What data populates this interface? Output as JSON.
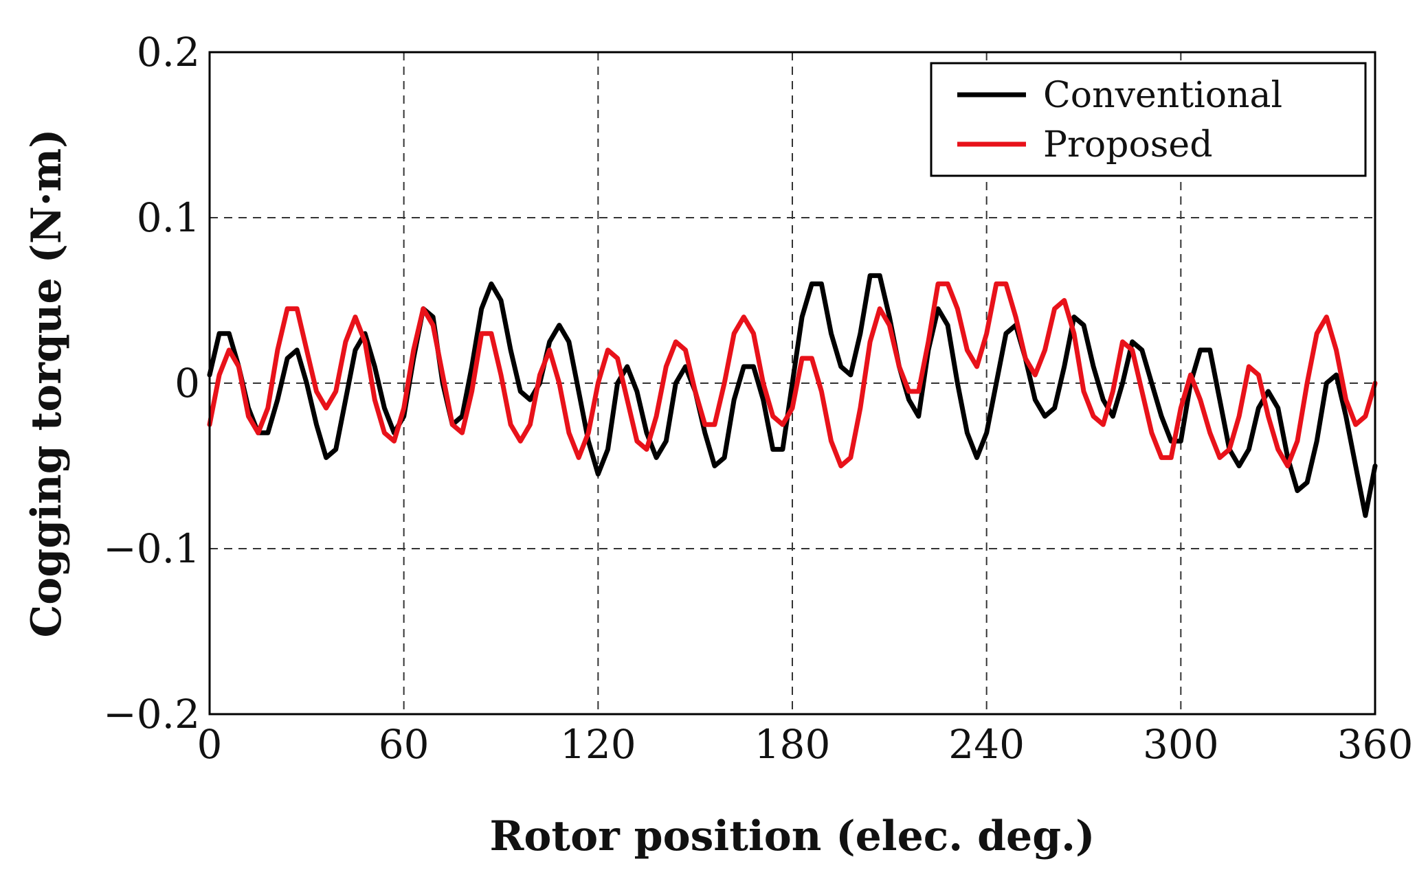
{
  "chart_data": {
    "type": "line",
    "title": "",
    "xlabel": "Rotor position (elec. deg.)",
    "ylabel": "Cogging torque (N·m)",
    "xlim": [
      0,
      360
    ],
    "ylim": [
      -0.2,
      0.2
    ],
    "grid": true,
    "legend_position": "top-right",
    "x_ticks": [
      0,
      60,
      120,
      180,
      240,
      300,
      360
    ],
    "x_tick_labels": [
      "0",
      "60",
      "120",
      "180",
      "240",
      "300",
      "360"
    ],
    "y_ticks": [
      0.2,
      0.1,
      0,
      -0.1,
      -0.2
    ],
    "y_tick_labels": [
      "0.2",
      "0.1",
      "0",
      "−0.1",
      "−0.2"
    ],
    "x": [
      0,
      3,
      6,
      9,
      12,
      15,
      18,
      21,
      24,
      27,
      30,
      33,
      36,
      39,
      42,
      45,
      48,
      51,
      54,
      57,
      60,
      63,
      66,
      69,
      72,
      75,
      78,
      81,
      84,
      87,
      90,
      93,
      96,
      99,
      102,
      105,
      108,
      111,
      114,
      117,
      120,
      123,
      126,
      129,
      132,
      135,
      138,
      141,
      144,
      147,
      150,
      153,
      156,
      159,
      162,
      165,
      168,
      171,
      174,
      177,
      180,
      183,
      186,
      189,
      192,
      195,
      198,
      201,
      204,
      207,
      210,
      213,
      216,
      219,
      222,
      225,
      228,
      231,
      234,
      237,
      240,
      243,
      246,
      249,
      252,
      255,
      258,
      261,
      264,
      267,
      270,
      273,
      276,
      279,
      282,
      285,
      288,
      291,
      294,
      297,
      300,
      303,
      306,
      309,
      312,
      315,
      318,
      321,
      324,
      327,
      330,
      333,
      336,
      339,
      342,
      345,
      348,
      351,
      354,
      357,
      360
    ],
    "series": [
      {
        "name": "Conventional",
        "color": "#000000",
        "values": [
          0.005,
          0.03,
          0.03,
          0.01,
          -0.015,
          -0.03,
          -0.03,
          -0.01,
          0.015,
          0.02,
          0.0,
          -0.025,
          -0.045,
          -0.04,
          -0.01,
          0.02,
          0.03,
          0.01,
          -0.015,
          -0.03,
          -0.02,
          0.015,
          0.045,
          0.04,
          0.0,
          -0.025,
          -0.02,
          0.01,
          0.045,
          0.06,
          0.05,
          0.02,
          -0.005,
          -0.01,
          0.0,
          0.025,
          0.035,
          0.025,
          -0.005,
          -0.035,
          -0.055,
          -0.04,
          0.0,
          0.01,
          -0.005,
          -0.03,
          -0.045,
          -0.035,
          0.0,
          0.01,
          -0.005,
          -0.03,
          -0.05,
          -0.045,
          -0.01,
          0.01,
          0.01,
          -0.01,
          -0.04,
          -0.04,
          0.0,
          0.04,
          0.06,
          0.06,
          0.03,
          0.01,
          0.005,
          0.03,
          0.065,
          0.065,
          0.04,
          0.01,
          -0.01,
          -0.02,
          0.02,
          0.045,
          0.035,
          0.0,
          -0.03,
          -0.045,
          -0.03,
          0.0,
          0.03,
          0.035,
          0.015,
          -0.01,
          -0.02,
          -0.015,
          0.01,
          0.04,
          0.035,
          0.01,
          -0.01,
          -0.02,
          0.0,
          0.025,
          0.02,
          0.0,
          -0.02,
          -0.035,
          -0.035,
          0.0,
          0.02,
          0.02,
          -0.01,
          -0.04,
          -0.05,
          -0.04,
          -0.015,
          -0.005,
          -0.015,
          -0.045,
          -0.065,
          -0.06,
          -0.035,
          0.0,
          0.005,
          -0.02,
          -0.05,
          -0.08,
          -0.05
        ]
      },
      {
        "name": "Proposed",
        "color": "#e8121a",
        "values": [
          -0.025,
          0.005,
          0.02,
          0.01,
          -0.02,
          -0.03,
          -0.015,
          0.02,
          0.045,
          0.045,
          0.02,
          -0.005,
          -0.015,
          -0.005,
          0.025,
          0.04,
          0.025,
          -0.01,
          -0.03,
          -0.035,
          -0.015,
          0.02,
          0.045,
          0.035,
          0.005,
          -0.025,
          -0.03,
          -0.005,
          0.03,
          0.03,
          0.005,
          -0.025,
          -0.035,
          -0.025,
          0.005,
          0.02,
          0.0,
          -0.03,
          -0.045,
          -0.03,
          0.0,
          0.02,
          0.015,
          -0.01,
          -0.035,
          -0.04,
          -0.02,
          0.01,
          0.025,
          0.02,
          -0.005,
          -0.025,
          -0.025,
          0.0,
          0.03,
          0.04,
          0.03,
          0.0,
          -0.02,
          -0.025,
          -0.015,
          0.015,
          0.015,
          -0.005,
          -0.035,
          -0.05,
          -0.045,
          -0.015,
          0.025,
          0.045,
          0.035,
          0.01,
          -0.005,
          -0.005,
          0.025,
          0.06,
          0.06,
          0.045,
          0.02,
          0.01,
          0.03,
          0.06,
          0.06,
          0.04,
          0.015,
          0.005,
          0.02,
          0.045,
          0.05,
          0.03,
          -0.005,
          -0.02,
          -0.025,
          -0.005,
          0.025,
          0.02,
          -0.005,
          -0.03,
          -0.045,
          -0.045,
          -0.015,
          0.005,
          -0.01,
          -0.03,
          -0.045,
          -0.04,
          -0.02,
          0.01,
          0.005,
          -0.02,
          -0.04,
          -0.05,
          -0.035,
          0.0,
          0.03,
          0.04,
          0.02,
          -0.01,
          -0.025,
          -0.02,
          0.0
        ]
      }
    ]
  }
}
